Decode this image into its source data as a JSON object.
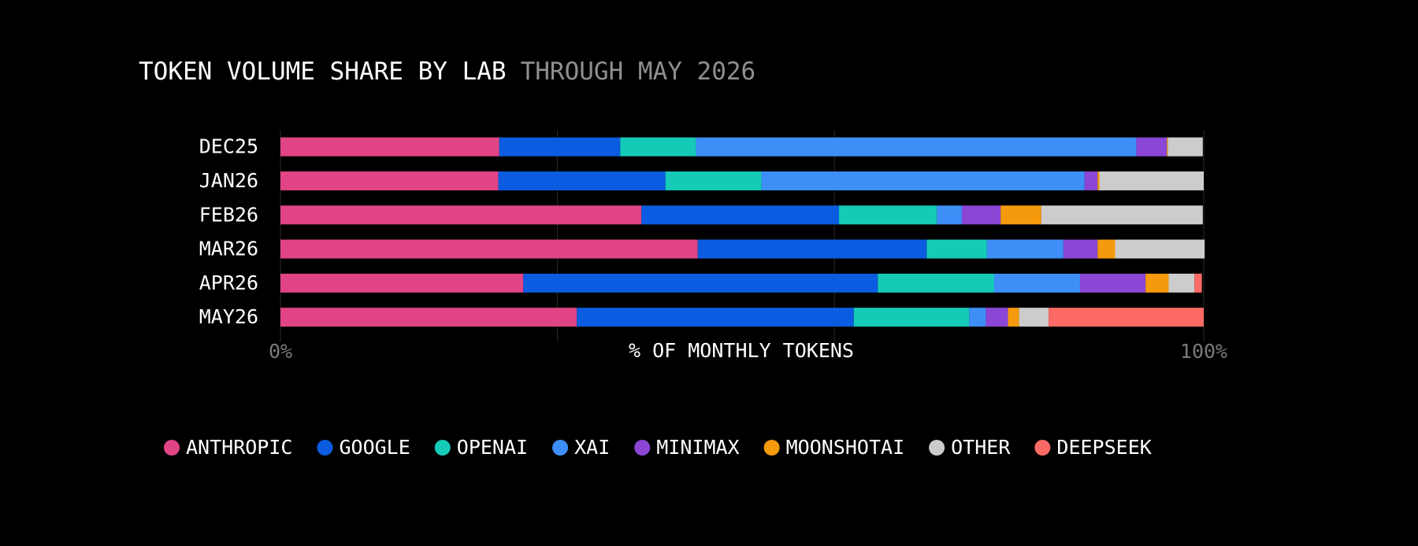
{
  "chart_data": {
    "type": "stacked_bar_horizontal",
    "title": "TOKEN VOLUME SHARE BY LAB",
    "subtitle": "THROUGH MAY 2026",
    "x_label": "% OF MONTHLY TOKENS",
    "categories": [
      "DEC25",
      "JAN26",
      "FEB26",
      "MAR26",
      "APR26",
      "MAY26"
    ],
    "series": [
      {
        "name": "ANTHROPIC",
        "color": "#e04485",
        "values": [
          23.7,
          23.6,
          39.1,
          45.2,
          26.3,
          32.1
        ]
      },
      {
        "name": "GOOGLE",
        "color": "#0b5ce0",
        "values": [
          13.1,
          18.1,
          21.4,
          24.8,
          38.4,
          30.0
        ]
      },
      {
        "name": "OPENAI",
        "color": "#15cbb8",
        "values": [
          8.2,
          10.4,
          10.6,
          6.5,
          12.6,
          12.5
        ]
      },
      {
        "name": "XAI",
        "color": "#3d8ff7",
        "values": [
          47.7,
          35.0,
          2.7,
          8.3,
          9.3,
          1.8
        ]
      },
      {
        "name": "MINIMAX",
        "color": "#8b46d6",
        "values": [
          3.3,
          1.4,
          4.2,
          3.7,
          7.1,
          2.4
        ]
      },
      {
        "name": "MOONSHOTAI",
        "color": "#f59a0c",
        "values": [
          0.1,
          0.2,
          4.4,
          1.9,
          2.5,
          1.2
        ]
      },
      {
        "name": "OTHER",
        "color": "#cccccc",
        "values": [
          3.8,
          11.3,
          17.5,
          9.7,
          2.8,
          3.2
        ]
      },
      {
        "name": "DEEPSEEK",
        "color": "#fb6a64",
        "values": [
          0,
          0,
          0,
          0,
          0.8,
          16.8
        ]
      }
    ],
    "xlim": [
      0,
      100
    ],
    "xticks": [
      {
        "value": 0,
        "label": "0%"
      },
      {
        "value": 100,
        "label": "100%"
      }
    ],
    "grid_lines": [
      30,
      60
    ],
    "legend": "bottom"
  }
}
